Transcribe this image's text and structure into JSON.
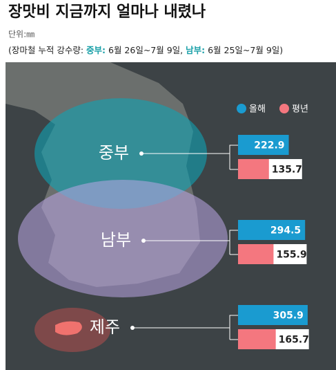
{
  "chart_data": {
    "type": "bar",
    "title": "장맛비 지금까지 얼마나 내렸나",
    "unit": "단위:㎜",
    "subtitle": [
      "(장마철 누적 강수량: ",
      "중부:",
      " 6월 26일~7월 9일, ",
      "남부:",
      " 6월 25일~7월 9일)"
    ],
    "categories": [
      "중부",
      "남부",
      "제주"
    ],
    "series": [
      {
        "name": "올해",
        "color": "#1a9bd0",
        "values": [
          222.9,
          294.5,
          305.9
        ]
      },
      {
        "name": "평년",
        "color": "#f4777f",
        "values": [
          135.7,
          155.9,
          165.7
        ]
      }
    ]
  }
}
